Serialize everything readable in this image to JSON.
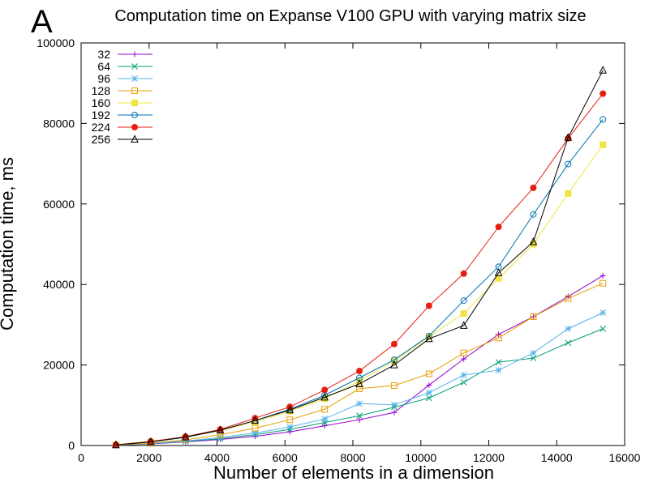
{
  "chart_data": {
    "type": "line",
    "panel_label": "A",
    "title": "Computation time on Expanse V100 GPU with varying matrix size",
    "xlabel": "Number of elements in a dimension",
    "ylabel": "Computation time, ms",
    "xlim": [
      0,
      16000
    ],
    "ylim": [
      0,
      100000
    ],
    "xticks": [
      0,
      2000,
      4000,
      6000,
      8000,
      10000,
      12000,
      14000,
      16000
    ],
    "yticks": [
      0,
      20000,
      40000,
      60000,
      80000,
      100000
    ],
    "xtick_labels": [
      "0",
      "2000",
      "4000",
      "6000",
      "8000",
      "10000",
      "12000",
      "14000",
      "16000"
    ],
    "ytick_labels": [
      "0",
      "20000",
      "40000",
      "60000",
      "80000",
      "100000"
    ],
    "legend_position": "top-left",
    "grid": false,
    "x": [
      1024,
      2048,
      3072,
      4096,
      5120,
      6144,
      7168,
      8192,
      9216,
      10240,
      11264,
      12288,
      13312,
      14336,
      15360
    ],
    "series": [
      {
        "name": "32",
        "color": "#9400d3",
        "marker": "plus",
        "values": [
          50,
          400,
          900,
          1500,
          2300,
          3400,
          4900,
          6400,
          8200,
          15000,
          21500,
          27600,
          32000,
          37000,
          42200
        ]
      },
      {
        "name": "64",
        "color": "#009e73",
        "marker": "cross",
        "values": [
          60,
          450,
          1000,
          1700,
          2700,
          4000,
          5700,
          7400,
          9500,
          11800,
          15700,
          20700,
          21700,
          25500,
          29000
        ]
      },
      {
        "name": "96",
        "color": "#56b4e9",
        "marker": "star",
        "values": [
          70,
          500,
          1100,
          2000,
          3100,
          4600,
          6600,
          10400,
          10100,
          13100,
          17500,
          18700,
          23000,
          29000,
          33000
        ]
      },
      {
        "name": "128",
        "color": "#e69f00",
        "marker": "square",
        "values": [
          100,
          600,
          1400,
          2700,
          4300,
          6400,
          9000,
          14100,
          14900,
          17800,
          23000,
          26700,
          32000,
          36500,
          40300
        ]
      },
      {
        "name": "160",
        "color": "#f0e442",
        "marker": "filled-square",
        "values": [
          150,
          900,
          2000,
          3700,
          5900,
          8500,
          11600,
          16000,
          21000,
          27000,
          32800,
          41500,
          50000,
          62600,
          74700
        ]
      },
      {
        "name": "192",
        "color": "#0072b2",
        "marker": "circle",
        "values": [
          150,
          900,
          2000,
          3800,
          6200,
          9000,
          12500,
          16800,
          21300,
          27200,
          36000,
          44400,
          57400,
          69900,
          81000
        ]
      },
      {
        "name": "224",
        "color": "#e51e10",
        "marker": "filled-circle",
        "values": [
          170,
          1000,
          2200,
          4000,
          6800,
          9600,
          13800,
          18500,
          25200,
          34700,
          42700,
          54300,
          64000,
          76300,
          87400
        ]
      },
      {
        "name": "256",
        "color": "#000000",
        "marker": "triangle",
        "values": [
          150,
          900,
          2100,
          3800,
          6200,
          8800,
          12000,
          15300,
          20000,
          26500,
          29800,
          42900,
          50600,
          76500,
          93200
        ]
      }
    ]
  }
}
